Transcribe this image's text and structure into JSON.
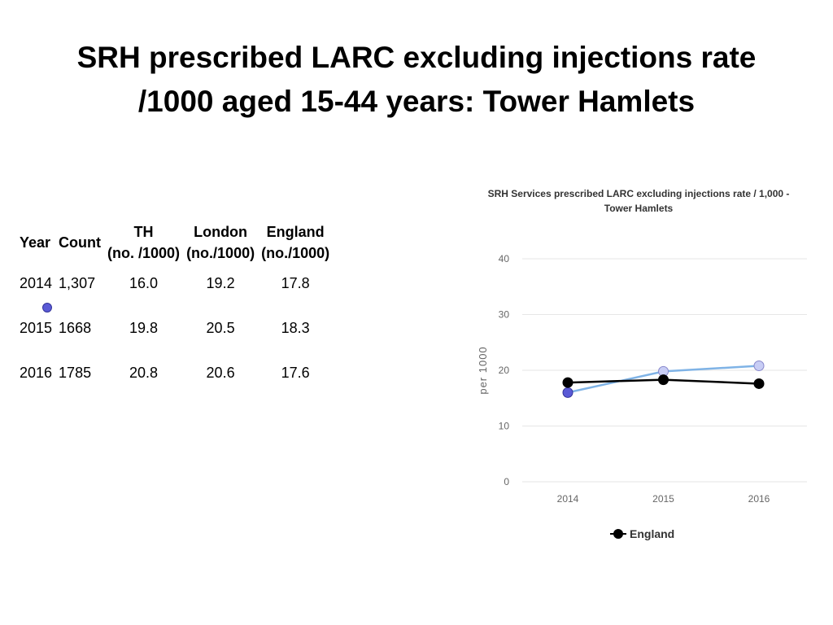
{
  "slide": {
    "title_line1": "SRH prescribed LARC excluding injections rate",
    "title_line2": "/1000 aged 15-44 years: Tower Hamlets"
  },
  "table": {
    "headers": {
      "year": "Year",
      "count": "Count",
      "th_line1": "TH",
      "th_line2": "(no. /1000)",
      "london_line1": "London",
      "london_line2": "(no./1000)",
      "england_line1": "England",
      "england_line2": "(no./1000)"
    },
    "rows": [
      {
        "year": "2014",
        "count": "1,307",
        "th": "16.0",
        "london": "19.2",
        "england": "17.8"
      },
      {
        "year": "2015",
        "count": "1668",
        "th": "19.8",
        "london": "20.5",
        "england": "18.3"
      },
      {
        "year": "2016",
        "count": "1785",
        "th": "20.8",
        "london": "20.6",
        "england": "17.6"
      }
    ]
  },
  "chart_data": {
    "type": "line",
    "title_line1": "SRH Services prescribed LARC excluding injections rate / 1,000 -",
    "title_line2": "Tower Hamlets",
    "ylabel": "per 1000",
    "x": [
      "2014",
      "2015",
      "2016"
    ],
    "ylim": [
      0,
      40
    ],
    "yticks": [
      "0",
      "10",
      "20",
      "30",
      "40"
    ],
    "grid": true,
    "legend_position": "bottom",
    "legend_label": "England",
    "series": [
      {
        "values": [
          16.0,
          19.8,
          20.8
        ],
        "color": "#7fb3e6",
        "marker_color": "#c8cdf5",
        "marker_highlight": "#5a5ad6"
      },
      {
        "name": "England",
        "values": [
          17.8,
          18.3,
          17.6
        ],
        "color": "#000000",
        "marker_color": "#000000"
      }
    ]
  },
  "colors": {
    "grid": "#e6e6e6",
    "axis_text": "#666666",
    "bullet": "#5a5ad6"
  }
}
